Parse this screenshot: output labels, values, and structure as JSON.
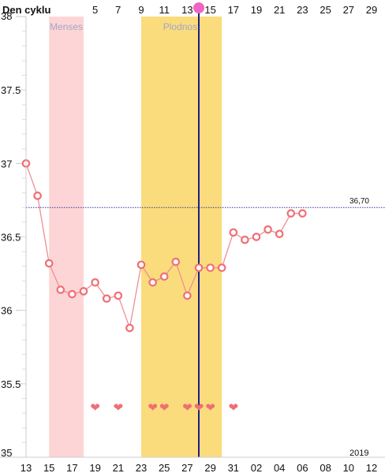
{
  "chart_data": {
    "type": "line",
    "title": "Den cyklu",
    "year": "2019",
    "top_axis_labels": [
      "5",
      "7",
      "9",
      "11",
      "13",
      "15",
      "17",
      "19",
      "21",
      "23",
      "25",
      "27",
      "29"
    ],
    "bottom_axis_labels": [
      "13",
      "15",
      "17",
      "19",
      "21",
      "23",
      "25",
      "27",
      "29",
      "31",
      "02",
      "04",
      "06",
      "08",
      "10",
      "12"
    ],
    "ylim": [
      35,
      38
    ],
    "y_ticks": [
      "35",
      "35.5",
      "36",
      "36.5",
      "37",
      "37.5",
      "38"
    ],
    "reference_line": {
      "value": 36.7,
      "label": "36,70"
    },
    "bands": [
      {
        "name": "Menses",
        "start_index": 2,
        "end_index": 5,
        "color": "#fdd5d6"
      },
      {
        "name": "Plodnost",
        "start_index": 10,
        "end_index": 17,
        "color": "#fbdc7c"
      }
    ],
    "today_marker_index": 15,
    "series": [
      {
        "values": [
          37.0,
          36.78,
          36.32,
          36.14,
          36.11,
          36.13,
          36.19,
          36.08,
          36.1,
          35.88,
          36.31,
          36.19,
          36.23,
          36.33,
          36.1,
          36.29,
          36.29,
          36.29,
          36.53,
          36.48,
          36.5,
          36.55,
          36.52,
          36.66,
          36.66
        ],
        "color": "#ef8e95"
      }
    ],
    "hearts_at_indices": [
      6,
      8,
      11,
      12,
      14,
      15,
      16,
      18
    ]
  }
}
